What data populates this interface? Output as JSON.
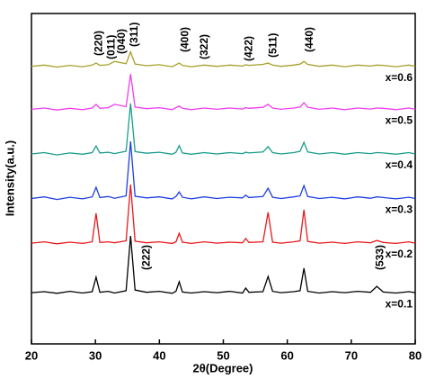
{
  "chart_data": {
    "type": "line",
    "x_label": "2θ(Degree)",
    "y_label": "Intensity(a.u.)",
    "x": [
      20,
      22,
      24,
      26,
      28,
      29.5,
      30.1,
      30.7,
      32,
      33,
      34.8,
      35.5,
      36.2,
      38,
      40,
      42,
      42.6,
      43.1,
      43.6,
      45,
      47,
      49,
      51,
      53,
      53.5,
      54,
      56.2,
      57,
      57.7,
      59,
      61,
      62,
      62.6,
      63.2,
      65,
      67,
      69,
      71,
      73,
      74,
      75,
      77,
      79,
      80
    ],
    "xlim": [
      20,
      80
    ],
    "xticks": [
      20,
      30,
      40,
      50,
      60,
      70,
      80
    ],
    "ylim": [
      0,
      100
    ],
    "series": [
      {
        "name": "x=0.1",
        "color": "#000000",
        "values": [
          15.5,
          15.8,
          15.3,
          15.9,
          15.4,
          15.8,
          20.2,
          15.6,
          15.9,
          15.4,
          16.1,
          32.7,
          16.3,
          15.6,
          15.9,
          15.3,
          15.9,
          18.8,
          15.7,
          15.4,
          15.8,
          15.5,
          15.9,
          15.4,
          16.9,
          15.6,
          15.8,
          20.4,
          15.9,
          15.5,
          15.8,
          16.1,
          22.9,
          15.9,
          15.4,
          15.8,
          15.5,
          15.9,
          15.6,
          17.4,
          15.7,
          15.4,
          15.8,
          15.5
        ]
      },
      {
        "name": "x=0.2",
        "color": "#e8191e",
        "values": [
          30.5,
          30.9,
          30.3,
          30.8,
          30.4,
          30.9,
          39.5,
          30.7,
          30.9,
          30.6,
          31.2,
          48.2,
          31.1,
          30.6,
          30.9,
          30.4,
          30.9,
          33.5,
          30.8,
          30.4,
          30.9,
          30.5,
          30.8,
          30.6,
          31.9,
          30.7,
          30.9,
          39.8,
          30.8,
          30.5,
          30.9,
          31.2,
          40.6,
          31.0,
          30.5,
          30.8,
          30.4,
          30.9,
          30.6,
          31.3,
          30.7,
          30.4,
          30.9,
          30.5
        ]
      },
      {
        "name": "x=0.3",
        "color": "#1f3fe0",
        "values": [
          44.0,
          44.5,
          43.7,
          44.4,
          43.9,
          44.5,
          47.4,
          44.3,
          44.6,
          44.1,
          44.8,
          61.3,
          44.7,
          44.2,
          44.5,
          43.9,
          44.6,
          46.0,
          44.4,
          43.9,
          44.5,
          44.0,
          44.4,
          44.2,
          45.0,
          44.3,
          44.6,
          47.1,
          44.4,
          44.0,
          44.5,
          44.8,
          47.9,
          44.6,
          44.0,
          44.4,
          43.9,
          44.5,
          44.1,
          44.5,
          44.3,
          43.9,
          44.4,
          44.0
        ]
      },
      {
        "name": "x=0.4",
        "color": "#1a9c8c",
        "values": [
          57.5,
          57.9,
          57.2,
          57.8,
          57.4,
          57.9,
          59.9,
          57.8,
          58.0,
          57.6,
          58.3,
          72.8,
          58.2,
          57.7,
          58.0,
          57.4,
          58.0,
          60.0,
          57.8,
          57.4,
          57.9,
          57.5,
          57.9,
          57.6,
          58.0,
          57.8,
          58.1,
          59.7,
          57.9,
          57.5,
          57.9,
          58.3,
          61.0,
          58.1,
          57.5,
          57.9,
          57.4,
          57.9,
          57.6,
          57.9,
          57.8,
          57.4,
          57.9,
          57.5
        ]
      },
      {
        "name": "x=0.5",
        "color": "#f03ef0",
        "values": [
          71.0,
          71.4,
          70.8,
          71.3,
          70.9,
          71.4,
          72.5,
          71.3,
          71.5,
          72.5,
          71.8,
          81.7,
          71.7,
          71.2,
          71.5,
          70.9,
          71.5,
          72.0,
          71.3,
          70.9,
          71.4,
          71.0,
          71.4,
          71.1,
          71.5,
          71.3,
          71.6,
          72.5,
          71.4,
          71.0,
          71.4,
          71.7,
          73.0,
          71.6,
          71.0,
          71.4,
          70.9,
          71.4,
          71.1,
          71.4,
          71.3,
          70.9,
          71.4,
          71.0
        ]
      },
      {
        "name": "x=0.6",
        "color": "#a8a02a",
        "values": [
          84.0,
          84.4,
          83.8,
          84.3,
          83.9,
          84.4,
          85.0,
          84.3,
          84.5,
          85.5,
          84.8,
          88.4,
          84.7,
          84.2,
          84.5,
          83.9,
          84.5,
          85.0,
          84.3,
          83.9,
          84.4,
          84.0,
          84.4,
          84.1,
          84.5,
          84.3,
          84.6,
          85.0,
          84.4,
          84.0,
          84.4,
          84.7,
          85.5,
          84.6,
          84.0,
          84.4,
          83.9,
          84.4,
          84.1,
          84.4,
          84.3,
          83.9,
          84.4,
          84.0
        ]
      }
    ],
    "annotations": [
      "(220)",
      "(011)",
      "(040)",
      "(311)",
      "(400)",
      "(322)",
      "(422)",
      "(511)",
      "(440)",
      "(222)",
      "(533)"
    ]
  }
}
